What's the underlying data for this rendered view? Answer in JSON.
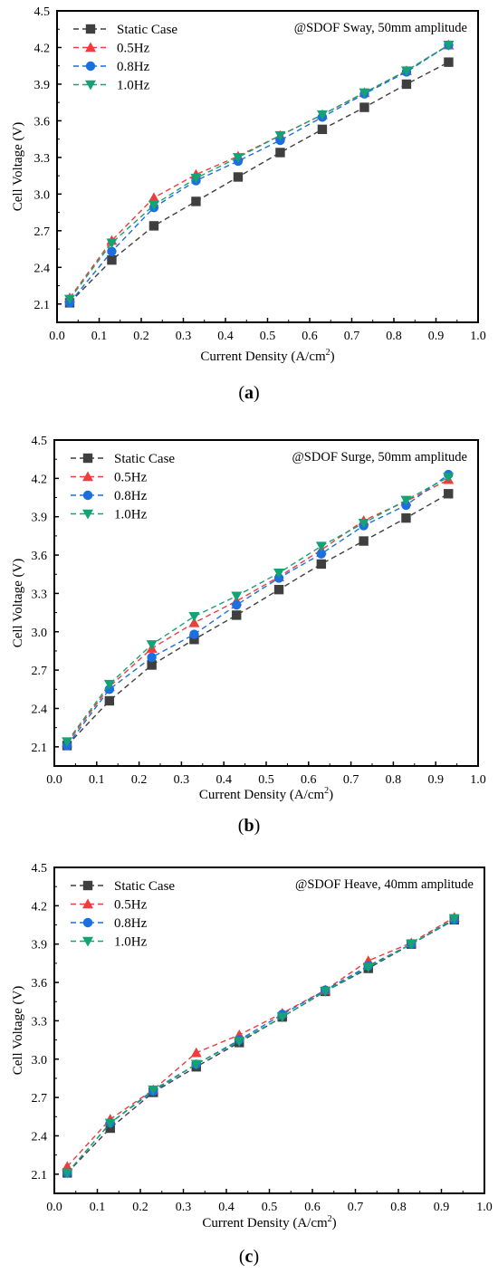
{
  "chart_data": [
    {
      "type": "line",
      "caption": "(a)",
      "caption_letter": "a",
      "annotation": "@SDOF Sway, 50mm amplitude",
      "xlabel": "Current Density (A/cm²)",
      "xlabel_main": "Current Density (A/cm",
      "xlabel_sup": "2",
      "xlabel_end": ")",
      "ylabel": "Cell Voltage (V)",
      "xlim": [
        0.0,
        1.0
      ],
      "ylim": [
        1.95,
        4.5
      ],
      "x_ticks": [
        "0.0",
        "0.1",
        "0.2",
        "0.3",
        "0.4",
        "0.5",
        "0.6",
        "0.7",
        "0.8",
        "0.9",
        "1.0"
      ],
      "y_ticks": [
        "2.1",
        "2.4",
        "2.7",
        "3.0",
        "3.3",
        "3.6",
        "3.9",
        "4.2",
        "4.5"
      ],
      "legend_position": "top-left",
      "grid": false,
      "x": [
        0.03,
        0.13,
        0.23,
        0.33,
        0.43,
        0.53,
        0.63,
        0.73,
        0.83,
        0.93
      ],
      "series": [
        {
          "name": "Static Case",
          "marker": "square",
          "color": "#3f3f3f",
          "values": [
            2.11,
            2.46,
            2.74,
            2.94,
            3.14,
            3.34,
            3.53,
            3.71,
            3.9,
            4.08
          ]
        },
        {
          "name": "0.5Hz",
          "marker": "triangle-up",
          "color": "#f03c3c",
          "values": [
            2.15,
            2.62,
            2.97,
            3.16,
            3.31,
            3.48,
            3.65,
            3.83,
            4.01,
            4.22
          ]
        },
        {
          "name": "0.8Hz",
          "marker": "circle",
          "color": "#1c6fe0",
          "values": [
            2.11,
            2.53,
            2.89,
            3.11,
            3.27,
            3.44,
            3.63,
            3.82,
            4.0,
            4.22
          ]
        },
        {
          "name": "1.0Hz",
          "marker": "triangle-down",
          "color": "#13a374",
          "values": [
            2.14,
            2.6,
            2.91,
            3.13,
            3.3,
            3.48,
            3.65,
            3.83,
            4.01,
            4.22
          ]
        }
      ]
    },
    {
      "type": "line",
      "caption": "(b)",
      "caption_letter": "b",
      "annotation": "@SDOF Surge, 50mm amplitude",
      "xlabel": "Current Density (A/cm²)",
      "xlabel_main": "Current Density (A/cm",
      "xlabel_sup": "2",
      "xlabel_end": ")",
      "ylabel": "Cell Voltage (V)",
      "xlim": [
        0.0,
        1.0
      ],
      "ylim": [
        1.95,
        4.5
      ],
      "x_ticks": [
        "0.0",
        "0.1",
        "0.2",
        "0.3",
        "0.4",
        "0.5",
        "0.6",
        "0.7",
        "0.8",
        "0.9",
        "1.0"
      ],
      "y_ticks": [
        "2.1",
        "2.4",
        "2.7",
        "3.0",
        "3.3",
        "3.6",
        "3.9",
        "4.2",
        "4.5"
      ],
      "legend_position": "top-left",
      "grid": false,
      "x": [
        0.03,
        0.13,
        0.23,
        0.33,
        0.43,
        0.53,
        0.63,
        0.73,
        0.83,
        0.93
      ],
      "series": [
        {
          "name": "Static Case",
          "marker": "square",
          "color": "#3f3f3f",
          "values": [
            2.11,
            2.46,
            2.74,
            2.94,
            3.13,
            3.33,
            3.53,
            3.71,
            3.89,
            4.08
          ]
        },
        {
          "name": "0.5Hz",
          "marker": "triangle-up",
          "color": "#f03c3c",
          "values": [
            2.13,
            2.57,
            2.87,
            3.07,
            3.24,
            3.43,
            3.64,
            3.87,
            4.02,
            4.19
          ]
        },
        {
          "name": "0.8Hz",
          "marker": "circle",
          "color": "#1c6fe0",
          "values": [
            2.11,
            2.55,
            2.8,
            2.98,
            3.21,
            3.42,
            3.61,
            3.83,
            3.99,
            4.23
          ]
        },
        {
          "name": "1.0Hz",
          "marker": "triangle-down",
          "color": "#13a374",
          "values": [
            2.14,
            2.59,
            2.9,
            3.12,
            3.28,
            3.46,
            3.67,
            3.85,
            4.03,
            4.21
          ]
        }
      ]
    },
    {
      "type": "line",
      "caption": "(c)",
      "caption_letter": "c",
      "annotation": "@SDOF Heave, 40mm amplitude",
      "xlabel": "Current Density (A/cm²)",
      "xlabel_main": "Current Density (A/cm",
      "xlabel_sup": "2",
      "xlabel_end": ")",
      "ylabel": "Cell Voltage (V)",
      "xlim": [
        0.0,
        1.0
      ],
      "ylim": [
        1.95,
        4.5
      ],
      "x_ticks": [
        "0.0",
        "0.1",
        "0.2",
        "0.3",
        "0.4",
        "0.5",
        "0.6",
        "0.7",
        "0.8",
        "0.9",
        "1.0"
      ],
      "y_ticks": [
        "2.1",
        "2.4",
        "2.7",
        "3.0",
        "3.3",
        "3.6",
        "3.9",
        "4.2",
        "4.5"
      ],
      "legend_position": "top-left",
      "grid": false,
      "x": [
        0.03,
        0.13,
        0.23,
        0.33,
        0.43,
        0.53,
        0.63,
        0.73,
        0.83,
        0.93
      ],
      "series": [
        {
          "name": "Static Case",
          "marker": "square",
          "color": "#3f3f3f",
          "values": [
            2.11,
            2.46,
            2.74,
            2.94,
            3.13,
            3.33,
            3.53,
            3.71,
            3.9,
            4.09
          ]
        },
        {
          "name": "0.5Hz",
          "marker": "triangle-up",
          "color": "#f03c3c",
          "values": [
            2.16,
            2.53,
            2.76,
            3.05,
            3.19,
            3.36,
            3.54,
            3.77,
            3.91,
            4.11
          ]
        },
        {
          "name": "0.8Hz",
          "marker": "circle",
          "color": "#1c6fe0",
          "values": [
            2.11,
            2.5,
            2.75,
            2.96,
            3.15,
            3.35,
            3.54,
            3.73,
            3.9,
            4.09
          ]
        },
        {
          "name": "1.0Hz",
          "marker": "triangle-down",
          "color": "#13a374",
          "values": [
            2.11,
            2.5,
            2.76,
            2.96,
            3.14,
            3.33,
            3.53,
            3.72,
            3.9,
            4.1
          ]
        }
      ]
    }
  ]
}
